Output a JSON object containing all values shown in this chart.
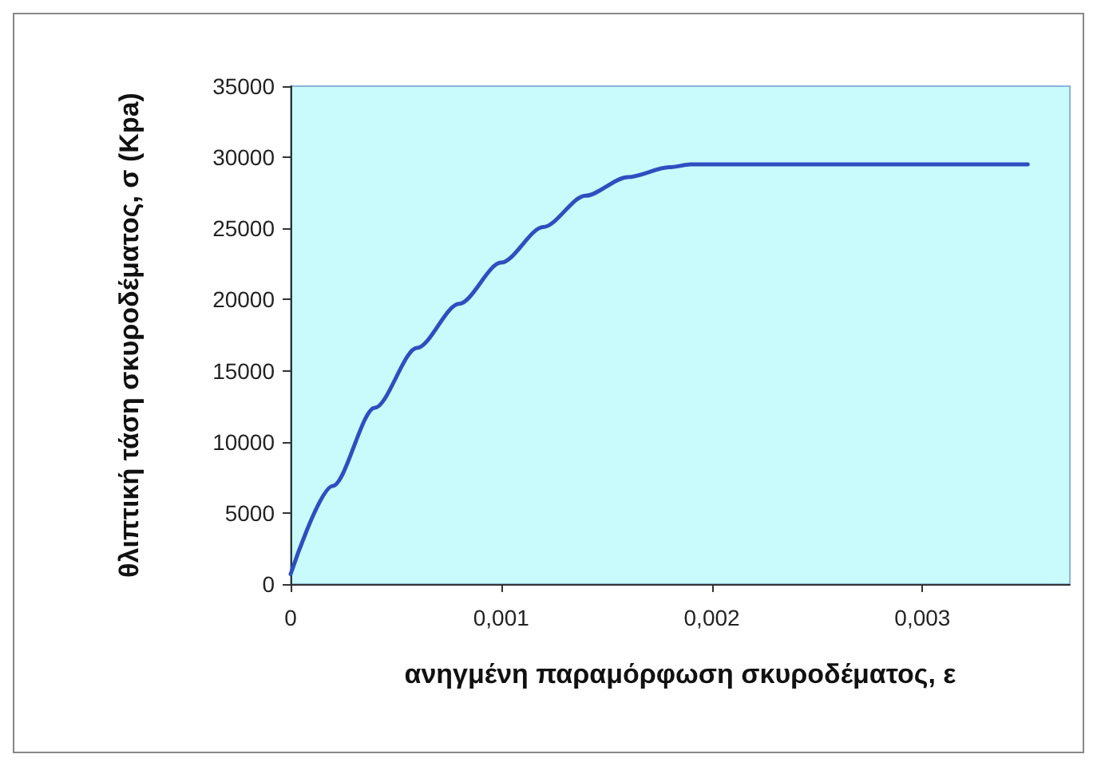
{
  "chart_data": {
    "type": "line",
    "xlabel": "ανηγμένη παραμόρφωση σκυροδέματος, ε",
    "ylabel": "θλιπτική τάση σκυροδέματος, σ (Kpa)",
    "x": [
      0,
      0.0002,
      0.0004,
      0.0006,
      0.0008,
      0.001,
      0.0012,
      0.0014,
      0.0016,
      0.0018,
      0.0019,
      0.002,
      0.0035
    ],
    "series": [
      {
        "color": "#2e4fbf",
        "values": [
          700,
          6900,
          12400,
          16600,
          19700,
          22600,
          25100,
          27300,
          28600,
          29300,
          29500,
          29500,
          29500
        ]
      }
    ],
    "xlim": [
      0,
      0.0037
    ],
    "xticks": [
      0,
      {
        "value": 0.001,
        "label": "0,001"
      },
      {
        "value": 0.002,
        "label": "0,002"
      },
      {
        "value": 0.003,
        "label": "0,003"
      }
    ],
    "ylim": [
      0,
      35000
    ],
    "yticks": [
      0,
      5000,
      10000,
      15000,
      20000,
      25000,
      30000,
      35000
    ],
    "grid": false,
    "marker": "none",
    "line_style": "solid"
  }
}
